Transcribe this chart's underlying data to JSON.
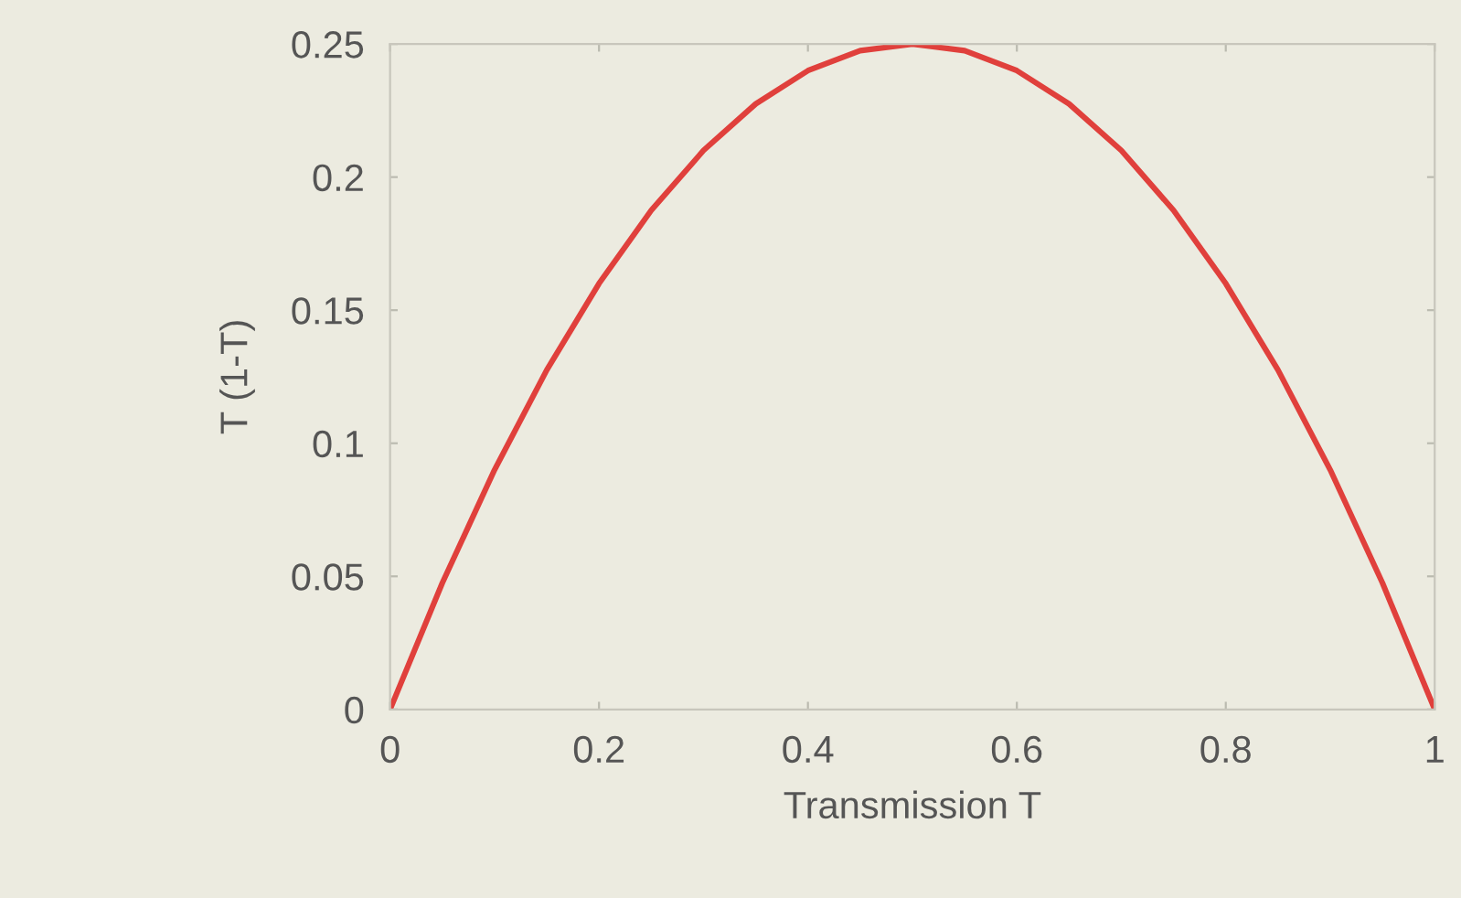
{
  "chart_data": {
    "type": "line",
    "xlabel": "Transmission T",
    "ylabel": "T (1-T)",
    "x": [
      0,
      0.05,
      0.1,
      0.15,
      0.2,
      0.25,
      0.3,
      0.35,
      0.4,
      0.45,
      0.5,
      0.55,
      0.6,
      0.65,
      0.7,
      0.75,
      0.8,
      0.85,
      0.9,
      0.95,
      1
    ],
    "series": [
      {
        "color": "#e0403c",
        "values": [
          0,
          0.0475,
          0.09,
          0.1275,
          0.16,
          0.1875,
          0.21,
          0.2275,
          0.24,
          0.2475,
          0.25,
          0.2475,
          0.24,
          0.2275,
          0.21,
          0.1875,
          0.16,
          0.1275,
          0.09,
          0.0475,
          0
        ]
      }
    ],
    "xlim": [
      0,
      1
    ],
    "ylim": [
      0,
      0.25
    ],
    "xticks": [
      0,
      {
        "value": 0.2,
        "label": "0.2"
      },
      {
        "value": 0.4,
        "label": "0.4"
      },
      {
        "value": 0.6,
        "label": "0.6"
      },
      {
        "value": 0.8,
        "label": "0.8"
      },
      1
    ],
    "yticks": [
      0,
      {
        "value": 0.05,
        "label": "0.05"
      },
      {
        "value": 0.1,
        "label": "0.1"
      },
      {
        "value": 0.15,
        "label": "0.15"
      },
      {
        "value": 0.2,
        "label": "0.2"
      },
      {
        "value": 0.25,
        "label": "0.25"
      }
    ],
    "grid": false,
    "legend": false,
    "marker": "none",
    "line_style": "solid"
  }
}
